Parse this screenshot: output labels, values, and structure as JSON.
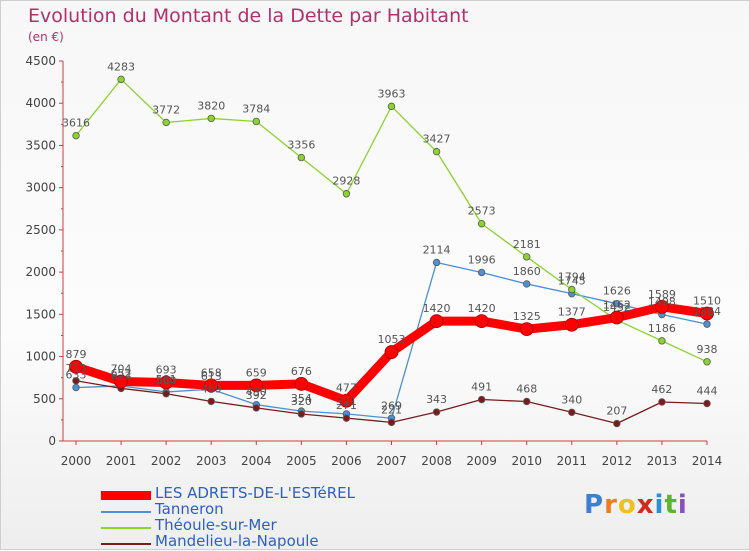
{
  "chart_data": {
    "type": "line",
    "title": "Evolution du Montant de la Dette par Habitant",
    "unit_label": "(en €)",
    "x": [
      2000,
      2001,
      2002,
      2003,
      2004,
      2005,
      2006,
      2007,
      2008,
      2009,
      2010,
      2011,
      2012,
      2013,
      2014
    ],
    "ylim": [
      0,
      4500
    ],
    "yticks": [
      0,
      500,
      1000,
      1500,
      2000,
      2500,
      3000,
      3500,
      4000,
      4500
    ],
    "grid": false,
    "legend_position": "bottom-left",
    "series": [
      {
        "name": "LES ADRETS-DE-L'ESTéREL",
        "color": "#ff0000",
        "emphasis": true,
        "values": [
          879,
          704,
          693,
          658,
          659,
          676,
          477,
          1053,
          1420,
          1420,
          1325,
          1377,
          1462,
          1589,
          1510
        ]
      },
      {
        "name": "Tanneron",
        "color": "#4f8fd6",
        "values": [
          633,
          652,
          581,
          613,
          430,
          354,
          321,
          269,
          2114,
          1996,
          1860,
          1745,
          1626,
          1498,
          1384
        ]
      },
      {
        "name": "Théoule-sur-Mer",
        "color": "#8bd42e",
        "values": [
          3616,
          4283,
          3772,
          3820,
          3784,
          3356,
          2928,
          3963,
          3427,
          2573,
          2181,
          1794,
          1432,
          1186,
          938
        ]
      },
      {
        "name": "Mandelieu-la-Napoule",
        "color": "#7b1c1c",
        "values": [
          713,
          623,
          560,
          469,
          392,
          320,
          271,
          221,
          343,
          491,
          468,
          340,
          207,
          462,
          444
        ]
      }
    ]
  },
  "brand": {
    "letters": [
      "P",
      "r",
      "o",
      "x",
      "i",
      "t",
      "i"
    ],
    "colors": [
      "#3d7fd1",
      "#f07d1d",
      "#f0c01d",
      "#d4291f",
      "#2a8fd8",
      "#5cb531",
      "#8a4fc0"
    ]
  }
}
